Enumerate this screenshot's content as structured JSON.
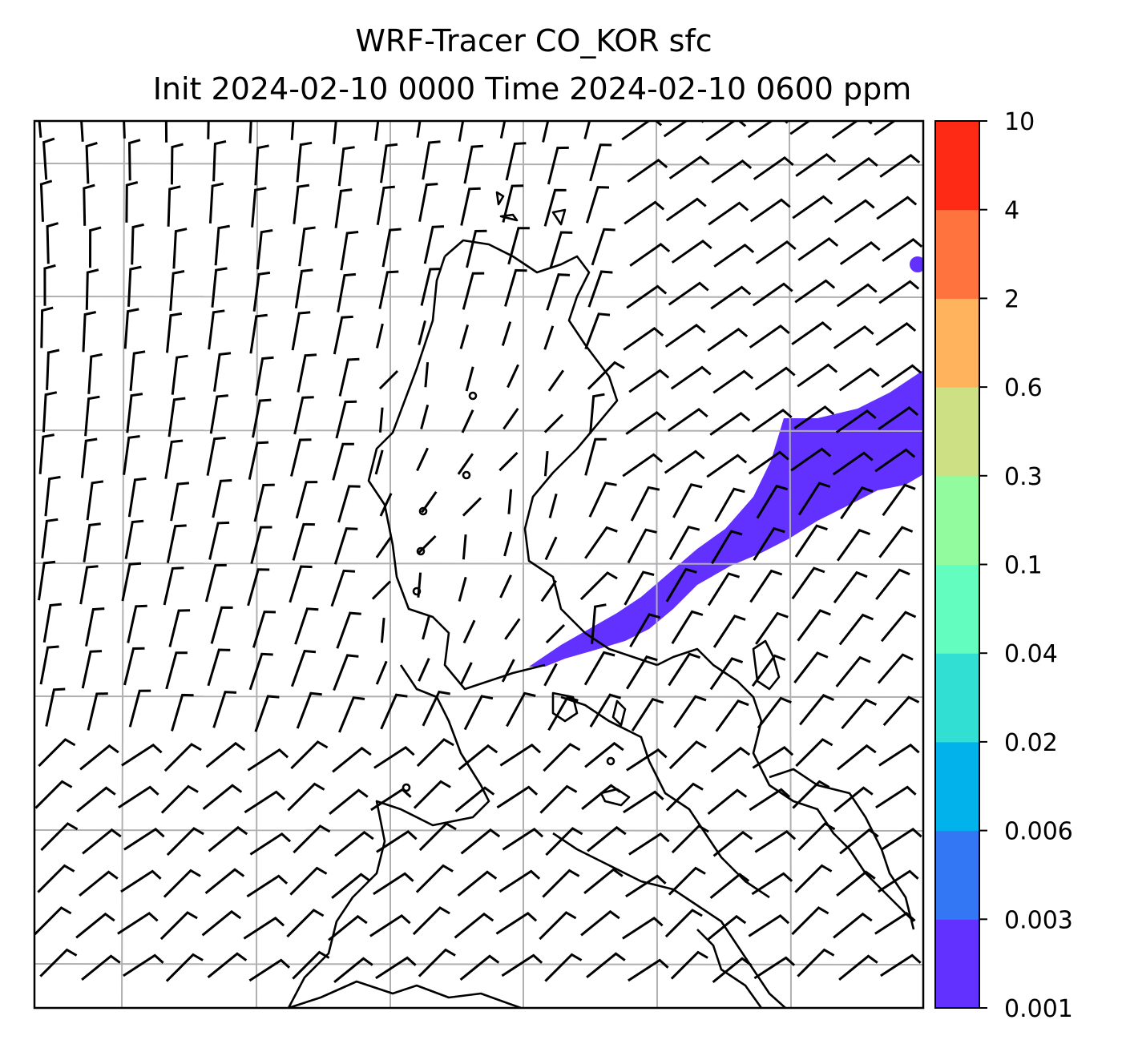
{
  "title": {
    "line1": "WRF-Tracer CO_KOR sfc",
    "line2": "Init 2024-02-10 0000 Time 2024-02-10 0600 ppm"
  },
  "colorbar": {
    "levels": [
      "0.001",
      "0.003",
      "0.006",
      "0.02",
      "0.04",
      "0.1",
      "0.3",
      "0.6",
      "2",
      "4",
      "10"
    ],
    "colors": [
      "#6230ff",
      "#3377f5",
      "#01b3ea",
      "#32dfd3",
      "#63fdbf",
      "#92fb9e",
      "#cde184",
      "#ffb35d",
      "#ff733e",
      "#ff2a15"
    ]
  },
  "map": {
    "plume_color": "#6230ff",
    "coastline_color": "#000000",
    "grid_color": "#b0b0b0",
    "wind_barb_color": "#000000"
  }
}
